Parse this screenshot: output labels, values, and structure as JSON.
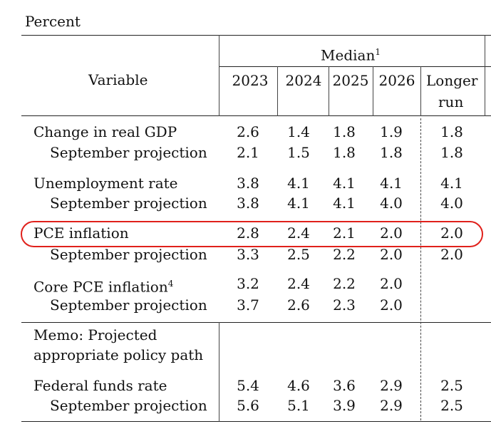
{
  "unit_label": "Percent",
  "header": {
    "variable_label": "Variable",
    "median_label": "Median",
    "median_footnote": "1",
    "years": [
      "2023",
      "2024",
      "2025",
      "2026"
    ],
    "longer_run_line1": "Longer",
    "longer_run_line2": "run"
  },
  "rows": [
    {
      "label": "Change in real GDP",
      "values": [
        "2.6",
        "1.4",
        "1.8",
        "1.9",
        "1.8"
      ]
    },
    {
      "label": "September projection",
      "values": [
        "2.1",
        "1.5",
        "1.8",
        "1.8",
        "1.8"
      ]
    },
    {
      "label": "Unemployment rate",
      "values": [
        "3.8",
        "4.1",
        "4.1",
        "4.1",
        "4.1"
      ]
    },
    {
      "label": "September projection",
      "values": [
        "3.8",
        "4.1",
        "4.1",
        "4.0",
        "4.0"
      ]
    },
    {
      "label": "PCE inflation",
      "values": [
        "2.8",
        "2.4",
        "2.1",
        "2.0",
        "2.0"
      ]
    },
    {
      "label": "September projection",
      "values": [
        "3.3",
        "2.5",
        "2.2",
        "2.0",
        "2.0"
      ]
    },
    {
      "label": "Core PCE inflation",
      "footnote": "4",
      "values": [
        "3.2",
        "2.4",
        "2.2",
        "2.0",
        ""
      ]
    },
    {
      "label": "September projection",
      "values": [
        "3.7",
        "2.6",
        "2.3",
        "2.0",
        ""
      ]
    },
    {
      "label": "Federal funds rate",
      "values": [
        "5.4",
        "4.6",
        "3.6",
        "2.9",
        "2.5"
      ]
    },
    {
      "label": "September projection",
      "values": [
        "5.6",
        "5.1",
        "3.9",
        "2.9",
        "2.5"
      ]
    }
  ],
  "memo": {
    "line1": "Memo: Projected",
    "line2": "appropriate policy path"
  },
  "highlight_color": "#e0201b"
}
